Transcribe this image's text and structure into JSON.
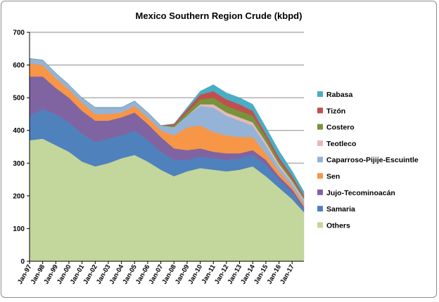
{
  "chart_data": {
    "type": "area",
    "stacked": true,
    "title": "Mexico Southern Region Crude (kbpd)",
    "xlabel": "",
    "ylabel": "",
    "ylim": [
      0,
      700
    ],
    "yticks": [
      0,
      100,
      200,
      300,
      400,
      500,
      600,
      700
    ],
    "x_tick_labels": [
      "Jan-97",
      "Jan-98",
      "Jan-99",
      "Jan-00",
      "Jan-01",
      "Jan-02",
      "Jan-03",
      "Jan-04",
      "Jan-05",
      "Jan-06",
      "Jan-07",
      "Jan-08",
      "Jan-09",
      "Jan-10",
      "Jan-11",
      "Jan-12",
      "Jan-13",
      "Jan-14",
      "Jan-15",
      "Jan-16",
      "Jan-17"
    ],
    "x": [
      1997.0,
      1998.0,
      1999.0,
      2000.0,
      2001.0,
      2002.0,
      2003.0,
      2004.0,
      2005.0,
      2006.0,
      2007.0,
      2008.0,
      2009.0,
      2010.0,
      2011.0,
      2012.0,
      2013.0,
      2014.0,
      2015.0,
      2016.0,
      2017.0,
      2017.9
    ],
    "legend_position": "right",
    "grid": true,
    "series": [
      {
        "name": "Others",
        "color": "#c3d69b",
        "values": [
          370,
          375,
          355,
          335,
          305,
          290,
          300,
          315,
          325,
          305,
          280,
          260,
          275,
          285,
          280,
          275,
          280,
          290,
          260,
          225,
          190,
          150
        ]
      },
      {
        "name": "Samaria",
        "color": "#4f81bd",
        "values": [
          75,
          90,
          95,
          90,
          85,
          75,
          75,
          70,
          75,
          65,
          55,
          50,
          35,
          35,
          35,
          35,
          35,
          35,
          35,
          25,
          20,
          12
        ]
      },
      {
        "name": "Jujo-Tecominoacán",
        "color": "#8064a2",
        "values": [
          120,
          100,
          80,
          75,
          70,
          65,
          55,
          55,
          55,
          50,
          45,
          35,
          30,
          25,
          20,
          20,
          15,
          15,
          15,
          10,
          10,
          5
        ]
      },
      {
        "name": "Sen",
        "color": "#f79646",
        "values": [
          40,
          35,
          30,
          25,
          25,
          20,
          20,
          15,
          20,
          20,
          20,
          40,
          70,
          70,
          60,
          55,
          50,
          40,
          20,
          15,
          10,
          8
        ]
      },
      {
        "name": "Caparroso-Pijije-Escuintle",
        "color": "#95b3d7",
        "values": [
          15,
          15,
          15,
          15,
          15,
          20,
          20,
          15,
          15,
          15,
          15,
          25,
          35,
          60,
          75,
          60,
          50,
          35,
          25,
          15,
          10,
          10
        ]
      },
      {
        "name": "Teotleco",
        "color": "#e6b9b8",
        "values": [
          0,
          0,
          0,
          0,
          0,
          0,
          0,
          0,
          0,
          0,
          0,
          0,
          0,
          5,
          10,
          10,
          10,
          10,
          10,
          8,
          5,
          5
        ]
      },
      {
        "name": "Costero",
        "color": "#77933c",
        "values": [
          0,
          0,
          0,
          0,
          0,
          0,
          0,
          0,
          0,
          0,
          0,
          5,
          10,
          15,
          20,
          20,
          20,
          20,
          15,
          10,
          8,
          5
        ]
      },
      {
        "name": "Tizón",
        "color": "#c0504d",
        "values": [
          0,
          0,
          0,
          0,
          0,
          0,
          0,
          0,
          0,
          0,
          0,
          5,
          10,
          15,
          20,
          20,
          20,
          15,
          10,
          10,
          8,
          6
        ]
      },
      {
        "name": "Rabasa",
        "color": "#4bacc6",
        "values": [
          0,
          0,
          0,
          0,
          0,
          0,
          0,
          0,
          0,
          0,
          0,
          0,
          5,
          10,
          20,
          20,
          20,
          20,
          20,
          20,
          15,
          12
        ]
      }
    ]
  }
}
